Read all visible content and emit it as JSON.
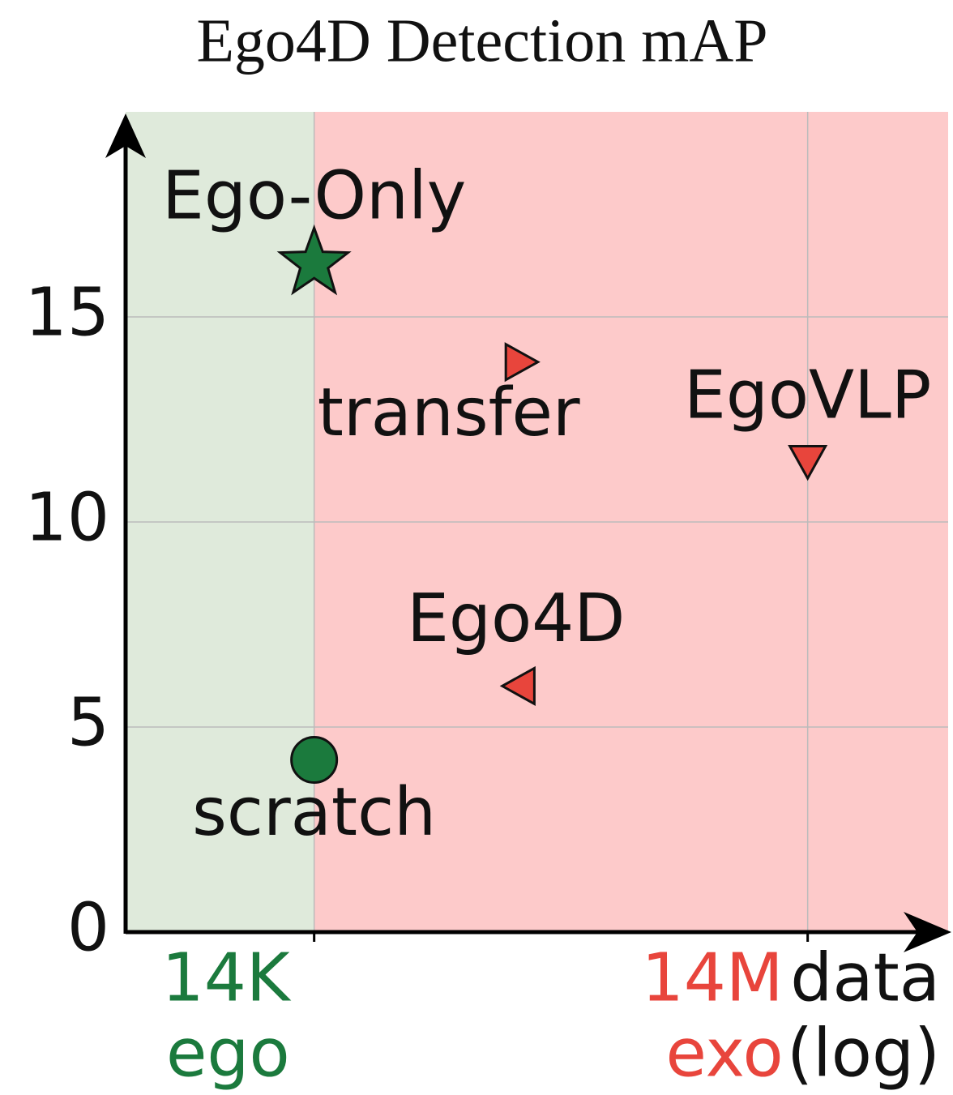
{
  "chart_data": {
    "type": "scatter",
    "title": "Ego4D Detection mAP",
    "xlabel": [
      "data",
      "(log)"
    ],
    "log_x": true,
    "grid": true,
    "xlim": [
      1000,
      100000000
    ],
    "ylim": [
      0,
      20
    ],
    "xticks": [
      {
        "value": 14000,
        "label": "14K"
      },
      {
        "value": 14000000,
        "label": "14M"
      }
    ],
    "xtick_colors": [
      "#1b7a3d",
      "#e8453c"
    ],
    "yticks": [
      0,
      5,
      10,
      15
    ],
    "regions": [
      {
        "label": "ego",
        "from": 1000,
        "to": 14000,
        "color": "#dfeadb",
        "text_color": "#1b7a3d"
      },
      {
        "label": "exo",
        "from": 14000,
        "to": 100000000,
        "color": "#fdcaca",
        "text_color": "#e8453c"
      }
    ],
    "series": [
      {
        "name": "Ego-Only",
        "color": "#1b7a3d",
        "marker": "star",
        "x": [
          14000
        ],
        "values": [
          16.3
        ]
      },
      {
        "name": "scratch",
        "color": "#1b7a3d",
        "marker": "circle",
        "x": [
          14000
        ],
        "values": [
          4.2
        ]
      },
      {
        "name": "transfer",
        "color": "#e8453c",
        "marker": "triangle-right",
        "x": [
          250000
        ],
        "values": [
          13.9
        ]
      },
      {
        "name": "Ego4D",
        "color": "#e8453c",
        "marker": "triangle-left",
        "x": [
          250000
        ],
        "values": [
          6.0
        ]
      },
      {
        "name": "EgoVLP",
        "color": "#e8453c",
        "marker": "triangle-down",
        "x": [
          14000000
        ],
        "values": [
          11.5
        ]
      }
    ]
  }
}
